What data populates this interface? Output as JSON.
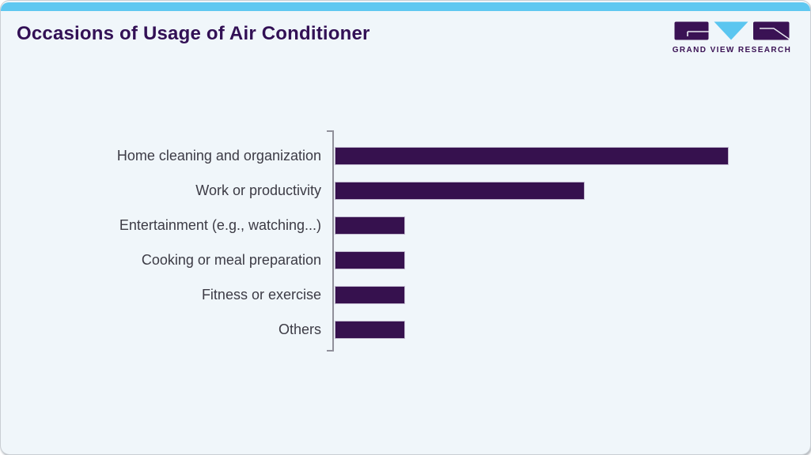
{
  "page": {
    "title": "Occasions of Usage of Air Conditioner"
  },
  "logo": {
    "text": "GRAND VIEW RESEARCH"
  },
  "colors": {
    "top_strip": "#5fc8f1",
    "background": "#f0f6fa",
    "title_text": "#321055",
    "label_text": "#3c3b45",
    "bar_fill": "#36114e",
    "bar_edge": "#c2bacf",
    "axis_line": "#90909a",
    "logo_purple": "#3a1254",
    "logo_cyan": "#5bc6f0"
  },
  "chart_data": {
    "type": "bar",
    "orientation": "horizontal",
    "title": "Occasions of Usage of Air Conditioner",
    "categories": [
      "Home cleaning and organization",
      "Work or productivity",
      "Entertainment (e.g., watching...)",
      "Cooking or meal preparation",
      "Fitness or exercise",
      "Others"
    ],
    "values": [
      56,
      35.5,
      10,
      10,
      10,
      10
    ],
    "xlim": [
      0,
      65
    ],
    "xlabel": "",
    "ylabel": "",
    "grid": false,
    "legend": false,
    "value_labels_shown": false
  }
}
